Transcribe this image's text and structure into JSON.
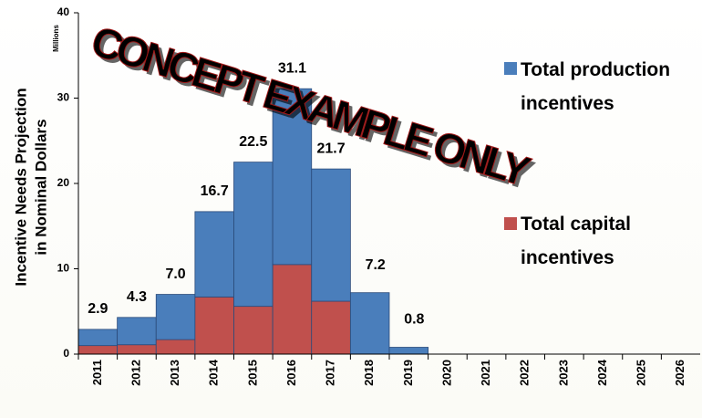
{
  "chart_data": {
    "type": "stacked_bar",
    "watermark": "CONCEPT EXAMPLE ONLY",
    "ylabel": [
      "Incentive Needs Projection",
      "in Nominal Dollars"
    ],
    "yunit": "Millions",
    "categories": [
      "2011",
      "2012",
      "2013",
      "2014",
      "2015",
      "2016",
      "2017",
      "2018",
      "2019",
      "2020",
      "2021",
      "2022",
      "2023",
      "2024",
      "2025",
      "2026"
    ],
    "series": [
      {
        "name": "Total production incentives",
        "color": "#4a7ebb",
        "values": [
          1.9,
          3.2,
          5.3,
          10.0,
          16.9,
          20.6,
          15.5,
          7.2,
          0.8,
          0,
          0,
          0,
          0,
          0,
          0,
          0
        ]
      },
      {
        "name": "Total capital incentives",
        "color": "#c0504d",
        "values": [
          1.0,
          1.1,
          1.7,
          6.7,
          5.6,
          10.5,
          6.2,
          0,
          0,
          0,
          0,
          0,
          0,
          0,
          0,
          0
        ]
      }
    ],
    "total_labels": [
      "2.9",
      "4.3",
      "7.0",
      "16.7",
      "22.5",
      "31.1",
      "21.7",
      "7.2",
      "0.8",
      null,
      null,
      null,
      null,
      null,
      null,
      null
    ],
    "ylim": [
      0,
      40
    ],
    "yticks": [
      0,
      10,
      20,
      30,
      40
    ],
    "grid": false
  }
}
